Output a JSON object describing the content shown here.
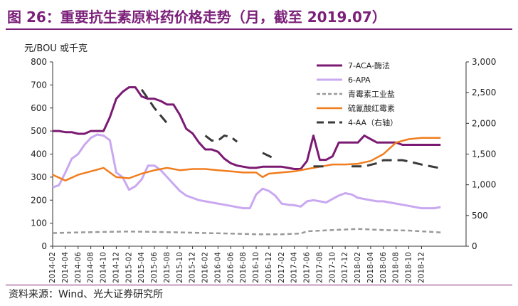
{
  "header": {
    "title": "图 26：重要抗生素原料药价格走势（月，截至 2019.07）"
  },
  "footer": {
    "source": "资料来源：Wind、光大证券研究所"
  },
  "chart_data": {
    "type": "line",
    "ylabel_left": "元/BOU 或千克",
    "ylim_left": [
      0,
      800
    ],
    "yticks_left": [
      0,
      100,
      200,
      300,
      400,
      500,
      600,
      700,
      800
    ],
    "ylim_right": [
      0,
      3000
    ],
    "yticks_right": [
      "0",
      "500",
      "1,000",
      "1,500",
      "2,000",
      "2,500",
      "3,000"
    ],
    "yticks_right_values": [
      0,
      500,
      1000,
      1500,
      2000,
      2500,
      3000
    ],
    "x_start": "2014-02",
    "x_end": "2019-07",
    "xticks": [
      "2014-02",
      "2014-04",
      "2014-06",
      "2014-08",
      "2014-10",
      "2014-12",
      "2015-02",
      "2015-04",
      "2015-06",
      "2015-08",
      "2015-10",
      "2015-12",
      "2016-02",
      "2016-04",
      "2016-06",
      "2016-08",
      "2016-10",
      "2016-12",
      "2017-02",
      "2017-04",
      "2017-06",
      "2017-08",
      "2017-10",
      "2017-12",
      "2018-02",
      "2018-04",
      "2018-06",
      "2018-08",
      "2018-10",
      "2018-12"
    ],
    "grid": false,
    "legend_position": "top-right",
    "colors": {
      "purple": "#7b1a72",
      "lavender": "#c9a8f0",
      "gray": "#9a9a9a",
      "orange": "#f07d1e",
      "black": "#3a3a3a"
    },
    "series": [
      {
        "name": "7-ACA-酶法",
        "axis": "left",
        "style": "solid",
        "color": "#7b1a72",
        "width": 3,
        "points": [
          [
            "2014-02",
            500
          ],
          [
            "2014-03",
            500
          ],
          [
            "2014-04",
            495
          ],
          [
            "2014-05",
            495
          ],
          [
            "2014-06",
            488
          ],
          [
            "2014-07",
            488
          ],
          [
            "2014-08",
            500
          ],
          [
            "2014-09",
            500
          ],
          [
            "2014-10",
            500
          ],
          [
            "2014-11",
            560
          ],
          [
            "2014-12",
            640
          ],
          [
            "2015-01",
            670
          ],
          [
            "2015-02",
            690
          ],
          [
            "2015-03",
            690
          ],
          [
            "2015-04",
            650
          ],
          [
            "2015-05",
            640
          ],
          [
            "2015-06",
            640
          ],
          [
            "2015-07",
            630
          ],
          [
            "2015-08",
            615
          ],
          [
            "2015-09",
            615
          ],
          [
            "2015-10",
            570
          ],
          [
            "2015-11",
            510
          ],
          [
            "2015-12",
            490
          ],
          [
            "2016-01",
            450
          ],
          [
            "2016-02",
            420
          ],
          [
            "2016-03",
            420
          ],
          [
            "2016-04",
            410
          ],
          [
            "2016-05",
            380
          ],
          [
            "2016-06",
            360
          ],
          [
            "2016-07",
            350
          ],
          [
            "2016-08",
            345
          ],
          [
            "2016-09",
            340
          ],
          [
            "2016-10",
            340
          ],
          [
            "2016-11",
            345
          ],
          [
            "2016-12",
            345
          ],
          [
            "2017-01",
            345
          ],
          [
            "2017-02",
            345
          ],
          [
            "2017-03",
            340
          ],
          [
            "2017-04",
            335
          ],
          [
            "2017-05",
            335
          ],
          [
            "2017-06",
            370
          ],
          [
            "2017-07",
            480
          ],
          [
            "2017-08",
            375
          ],
          [
            "2017-09",
            375
          ],
          [
            "2017-10",
            390
          ],
          [
            "2017-11",
            450
          ],
          [
            "2017-12",
            450
          ],
          [
            "2018-01",
            450
          ],
          [
            "2018-02",
            450
          ],
          [
            "2018-03",
            480
          ],
          [
            "2018-04",
            465
          ],
          [
            "2018-05",
            450
          ],
          [
            "2018-06",
            450
          ],
          [
            "2018-07",
            450
          ],
          [
            "2018-08",
            450
          ],
          [
            "2018-09",
            440
          ],
          [
            "2018-10",
            440
          ],
          [
            "2018-11",
            440
          ],
          [
            "2018-12",
            440
          ],
          [
            "2019-01",
            440
          ],
          [
            "2019-02",
            440
          ],
          [
            "2019-03",
            440
          ]
        ]
      },
      {
        "name": "6-APA",
        "axis": "left",
        "style": "solid",
        "color": "#c9a8f0",
        "width": 3,
        "points": [
          [
            "2014-02",
            255
          ],
          [
            "2014-03",
            265
          ],
          [
            "2014-04",
            320
          ],
          [
            "2014-05",
            380
          ],
          [
            "2014-06",
            400
          ],
          [
            "2014-07",
            440
          ],
          [
            "2014-08",
            470
          ],
          [
            "2014-09",
            485
          ],
          [
            "2014-10",
            480
          ],
          [
            "2014-11",
            460
          ],
          [
            "2014-12",
            320
          ],
          [
            "2015-01",
            300
          ],
          [
            "2015-02",
            245
          ],
          [
            "2015-03",
            260
          ],
          [
            "2015-04",
            290
          ],
          [
            "2015-05",
            350
          ],
          [
            "2015-06",
            350
          ],
          [
            "2015-07",
            330
          ],
          [
            "2015-08",
            300
          ],
          [
            "2015-09",
            270
          ],
          [
            "2015-10",
            240
          ],
          [
            "2015-11",
            220
          ],
          [
            "2015-12",
            210
          ],
          [
            "2016-01",
            200
          ],
          [
            "2016-02",
            195
          ],
          [
            "2016-03",
            190
          ],
          [
            "2016-04",
            185
          ],
          [
            "2016-05",
            180
          ],
          [
            "2016-06",
            175
          ],
          [
            "2016-07",
            170
          ],
          [
            "2016-08",
            165
          ],
          [
            "2016-09",
            165
          ],
          [
            "2016-10",
            225
          ],
          [
            "2016-11",
            250
          ],
          [
            "2016-12",
            240
          ],
          [
            "2017-01",
            220
          ],
          [
            "2017-02",
            185
          ],
          [
            "2017-03",
            180
          ],
          [
            "2017-04",
            178
          ],
          [
            "2017-05",
            172
          ],
          [
            "2017-06",
            195
          ],
          [
            "2017-07",
            200
          ],
          [
            "2017-08",
            195
          ],
          [
            "2017-09",
            190
          ],
          [
            "2017-10",
            205
          ],
          [
            "2017-11",
            220
          ],
          [
            "2017-12",
            230
          ],
          [
            "2018-01",
            225
          ],
          [
            "2018-02",
            210
          ],
          [
            "2018-03",
            205
          ],
          [
            "2018-04",
            200
          ],
          [
            "2018-05",
            195
          ],
          [
            "2018-06",
            195
          ],
          [
            "2018-07",
            190
          ],
          [
            "2018-08",
            185
          ],
          [
            "2018-09",
            180
          ],
          [
            "2018-10",
            175
          ],
          [
            "2018-11",
            170
          ],
          [
            "2018-12",
            165
          ],
          [
            "2019-01",
            165
          ],
          [
            "2019-02",
            165
          ],
          [
            "2019-03",
            170
          ]
        ]
      },
      {
        "name": "青霉素工业盐",
        "axis": "left",
        "style": "dashed",
        "color": "#9a9a9a",
        "width": 2.5,
        "points": [
          [
            "2014-02",
            57
          ],
          [
            "2014-06",
            60
          ],
          [
            "2014-10",
            62
          ],
          [
            "2015-02",
            64
          ],
          [
            "2015-06",
            62
          ],
          [
            "2015-10",
            60
          ],
          [
            "2016-02",
            57
          ],
          [
            "2016-06",
            55
          ],
          [
            "2016-10",
            52
          ],
          [
            "2017-02",
            52
          ],
          [
            "2017-05",
            55
          ],
          [
            "2017-06",
            65
          ],
          [
            "2017-10",
            70
          ],
          [
            "2018-02",
            75
          ],
          [
            "2018-06",
            70
          ],
          [
            "2018-10",
            68
          ],
          [
            "2019-03",
            60
          ]
        ]
      },
      {
        "name": "硫氰酸红霉素",
        "axis": "left",
        "style": "solid",
        "color": "#f07d1e",
        "width": 2.5,
        "points": [
          [
            "2014-02",
            310
          ],
          [
            "2014-04",
            285
          ],
          [
            "2014-06",
            310
          ],
          [
            "2014-08",
            325
          ],
          [
            "2014-10",
            340
          ],
          [
            "2014-12",
            300
          ],
          [
            "2015-02",
            295
          ],
          [
            "2015-04",
            315
          ],
          [
            "2015-06",
            330
          ],
          [
            "2015-08",
            340
          ],
          [
            "2015-10",
            330
          ],
          [
            "2015-12",
            335
          ],
          [
            "2016-02",
            335
          ],
          [
            "2016-04",
            330
          ],
          [
            "2016-06",
            325
          ],
          [
            "2016-08",
            320
          ],
          [
            "2016-10",
            320
          ],
          [
            "2016-11",
            300
          ],
          [
            "2016-12",
            315
          ],
          [
            "2017-02",
            320
          ],
          [
            "2017-04",
            325
          ],
          [
            "2017-06",
            335
          ],
          [
            "2017-08",
            345
          ],
          [
            "2017-10",
            355
          ],
          [
            "2017-12",
            355
          ],
          [
            "2018-02",
            358
          ],
          [
            "2018-04",
            370
          ],
          [
            "2018-06",
            400
          ],
          [
            "2018-08",
            450
          ],
          [
            "2018-10",
            465
          ],
          [
            "2018-12",
            470
          ],
          [
            "2019-01",
            470
          ],
          [
            "2019-03",
            470
          ]
        ]
      },
      {
        "name": "4-AA（右轴）",
        "axis": "right",
        "style": "dashed",
        "color": "#3a3a3a",
        "width": 3,
        "points": [
          [
            "2015-04",
            2550
          ],
          [
            "2015-05",
            2400
          ],
          [
            "2015-06",
            2250
          ],
          [
            "2015-08",
            2000
          ],
          [
            "2015-12",
            null
          ],
          [
            "2016-02",
            1800
          ],
          [
            "2016-03",
            1720
          ],
          [
            "2016-04",
            1720
          ],
          [
            "2016-05",
            1800
          ],
          [
            "2016-06",
            1780
          ],
          [
            "2016-07",
            1700
          ],
          [
            "2016-08",
            null
          ],
          [
            "2016-11",
            1520
          ],
          [
            "2016-12",
            1470
          ],
          [
            "2017-01",
            1420
          ],
          [
            "2017-02",
            null
          ],
          [
            "2017-07",
            1300
          ],
          [
            "2017-09",
            1300
          ],
          [
            "2017-10",
            null
          ],
          [
            "2018-01",
            1300
          ],
          [
            "2018-03",
            1300
          ],
          [
            "2018-05",
            1350
          ],
          [
            "2018-06",
            1400
          ],
          [
            "2018-09",
            1400
          ],
          [
            "2018-10",
            1380
          ],
          [
            "2018-12",
            1330
          ],
          [
            "2019-03",
            1270
          ]
        ]
      }
    ]
  }
}
